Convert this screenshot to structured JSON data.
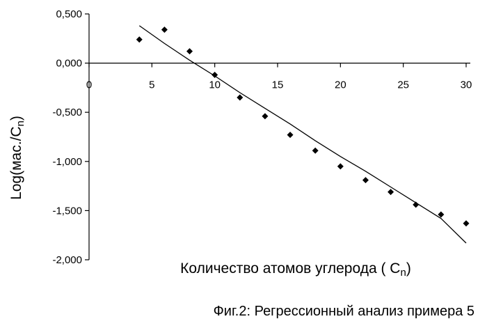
{
  "chart_data": {
    "type": "scatter",
    "title": "",
    "xlabel": "Количество атомов углерода ( Cn)",
    "ylabel": "Log(мас./Cn)",
    "xlabel_parts": {
      "main": "Количество атомов углерода ( C",
      "sub": "n",
      "end": ")"
    },
    "ylabel_parts": {
      "main": "Log(мас./C",
      "sub": "n",
      "end": ")"
    },
    "xlim": [
      0,
      30
    ],
    "ylim": [
      -2.0,
      0.5
    ],
    "x_ticks": [
      0,
      5,
      10,
      15,
      20,
      25,
      30
    ],
    "x_tick_labels": [
      "0",
      "5",
      "10",
      "15",
      "20",
      "25",
      "30"
    ],
    "y_ticks": [
      0.5,
      0.0,
      -0.5,
      -1.0,
      -1.5,
      -2.0
    ],
    "y_tick_labels": [
      "0,500",
      "0,000",
      "-0,500",
      "-1,000",
      "-1,500",
      "-2,000"
    ],
    "grid": false,
    "legend": "none",
    "series": [
      {
        "x": [
          4,
          6,
          8,
          10,
          12,
          14,
          16,
          18,
          20,
          22,
          24,
          26,
          28,
          30
        ],
        "y": [
          0.24,
          0.34,
          0.12,
          -0.12,
          -0.35,
          -0.54,
          -0.73,
          -0.89,
          -1.05,
          -1.19,
          -1.31,
          -1.44,
          -1.54,
          -1.63
        ],
        "marker": "diamond",
        "color": "#000000"
      }
    ],
    "trendline": {
      "x": [
        4,
        6,
        8,
        10,
        12,
        14,
        16,
        18,
        20,
        22,
        24,
        26,
        28,
        30
      ],
      "y": [
        0.38,
        0.2,
        0.03,
        -0.13,
        -0.3,
        -0.46,
        -0.62,
        -0.79,
        -0.95,
        -1.1,
        -1.26,
        -1.42,
        -1.58,
        -1.83
      ],
      "color": "#000000"
    }
  },
  "caption": "Фиг.2: Регрессионный анализ примера 5"
}
